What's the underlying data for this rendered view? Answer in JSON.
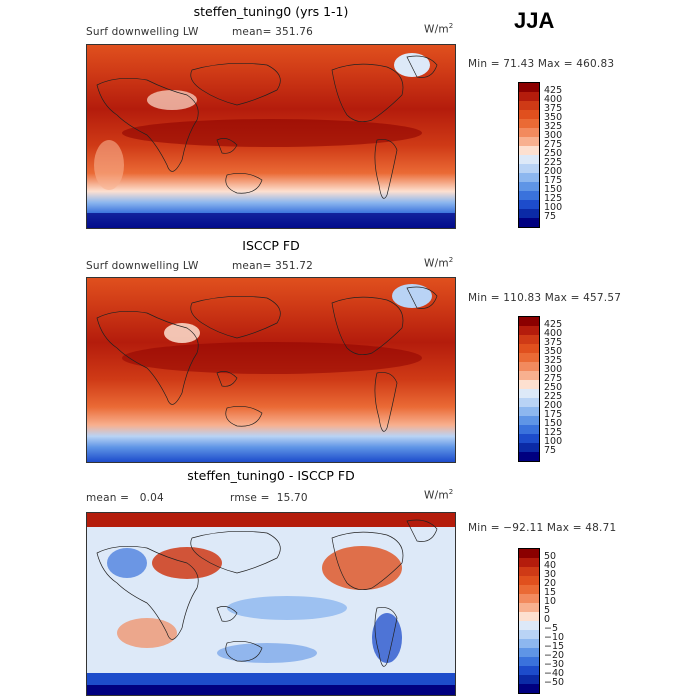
{
  "season": "JJA",
  "panels": [
    {
      "title": "steffen_tuning0 (yrs 1-1)",
      "left_label": "Surf downwelling LW",
      "stat_label": "mean= 351.76",
      "units": "W/m",
      "units_exp": "2",
      "minmax": "Min =  71.43 Max = 460.83",
      "kind": "abs"
    },
    {
      "title": "ISCCP FD",
      "left_label": "Surf downwelling LW",
      "stat_label": "mean= 351.72",
      "units": "W/m",
      "units_exp": "2",
      "minmax": "Min = 110.83 Max = 457.57",
      "kind": "abs"
    },
    {
      "title": "steffen_tuning0 - ISCCP FD",
      "left_label": "mean =   0.04",
      "stat_label": "rmse =  15.70",
      "units": "W/m",
      "units_exp": "2",
      "minmax": "Min = −92.11 Max =  48.71",
      "kind": "diff"
    }
  ],
  "colorbar_abs": {
    "labels": [
      "425",
      "400",
      "375",
      "350",
      "325",
      "300",
      "275",
      "250",
      "225",
      "200",
      "175",
      "150",
      "125",
      "100",
      "75"
    ],
    "colors": [
      "#8b0000",
      "#b41c0c",
      "#cf3a16",
      "#e0501e",
      "#ea6a35",
      "#f28a5e",
      "#f8b08f",
      "#fde0d0",
      "#dde9f8",
      "#b9d3f5",
      "#8db7ef",
      "#5f95e6",
      "#3a72dc",
      "#1d4ccb",
      "#0b2aa6",
      "#000080"
    ]
  },
  "colorbar_diff": {
    "labels": [
      "50",
      "40",
      "30",
      "20",
      "15",
      "10",
      "5",
      "0",
      "−5",
      "−10",
      "−15",
      "−20",
      "−30",
      "−40",
      "−50"
    ],
    "colors": [
      "#8b0000",
      "#b41c0c",
      "#cf3a16",
      "#e0501e",
      "#ea6a35",
      "#f28a5e",
      "#f8b08f",
      "#fde0d0",
      "#dde9f8",
      "#b9d3f5",
      "#8db7ef",
      "#5f95e6",
      "#3a72dc",
      "#1d4ccb",
      "#0b2aa6",
      "#000080"
    ]
  }
}
